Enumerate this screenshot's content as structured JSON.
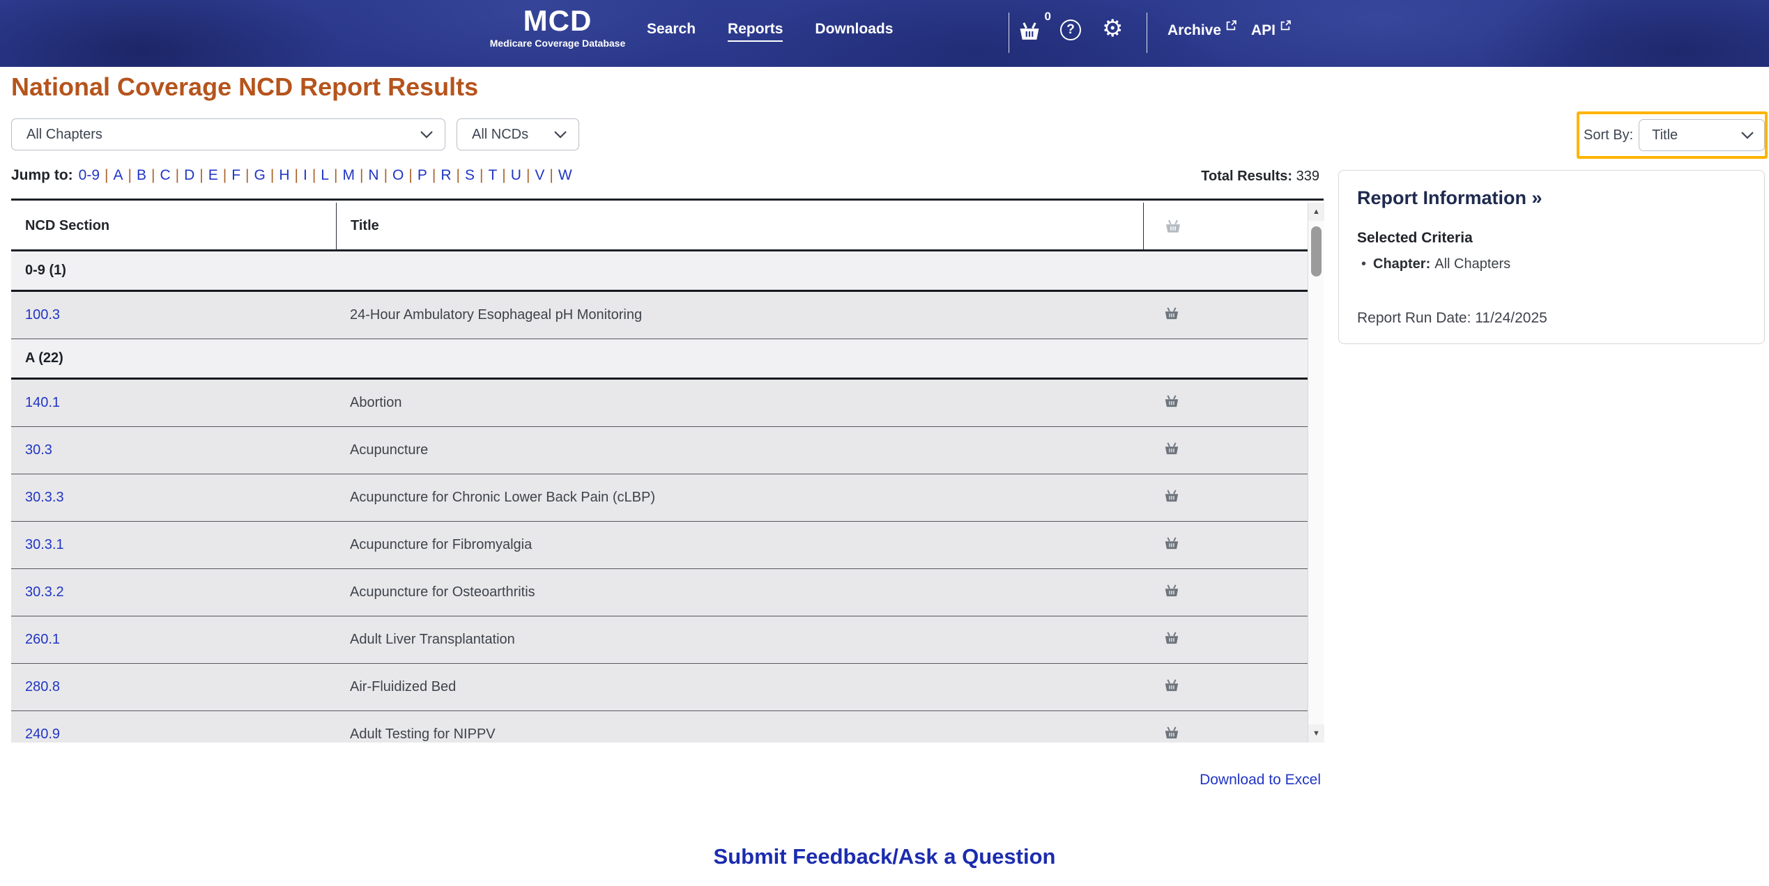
{
  "header": {
    "logo": {
      "title": "MCD",
      "subtitle": "Medicare Coverage Database"
    },
    "nav": [
      {
        "label": "Search",
        "active": false
      },
      {
        "label": "Reports",
        "active": true
      },
      {
        "label": "Downloads",
        "active": false
      }
    ],
    "basket_count": "0",
    "external_links": [
      {
        "label": "Archive"
      },
      {
        "label": "API"
      }
    ]
  },
  "page": {
    "title": "National Coverage NCD Report Results",
    "filters": {
      "chapter_value": "All Chapters",
      "ncd_value": "All NCDs",
      "sort_by_label": "Sort By:",
      "sort_by_value": "Title"
    },
    "jump": {
      "label": "Jump to:",
      "links": [
        "0-9",
        "A",
        "B",
        "C",
        "D",
        "E",
        "F",
        "G",
        "H",
        "I",
        "L",
        "M",
        "N",
        "O",
        "P",
        "R",
        "S",
        "T",
        "U",
        "V",
        "W"
      ]
    },
    "total_results_label": "Total Results:",
    "total_results_value": "339"
  },
  "table": {
    "columns": {
      "section": "NCD Section",
      "title": "Title"
    },
    "rows": [
      {
        "type": "group",
        "label": "0-9 (1)"
      },
      {
        "type": "data",
        "section": "100.3",
        "title": "24-Hour Ambulatory Esophageal pH Monitoring"
      },
      {
        "type": "group",
        "label": "A (22)"
      },
      {
        "type": "data",
        "section": "140.1",
        "title": "Abortion"
      },
      {
        "type": "data",
        "section": "30.3",
        "title": "Acupuncture"
      },
      {
        "type": "data",
        "section": "30.3.3",
        "title": "Acupuncture for Chronic Lower Back Pain (cLBP)"
      },
      {
        "type": "data",
        "section": "30.3.1",
        "title": "Acupuncture for Fibromyalgia"
      },
      {
        "type": "data",
        "section": "30.3.2",
        "title": "Acupuncture for Osteoarthritis"
      },
      {
        "type": "data",
        "section": "260.1",
        "title": "Adult Liver Transplantation"
      },
      {
        "type": "data",
        "section": "280.8",
        "title": "Air-Fluidized Bed"
      },
      {
        "type": "data",
        "section": "240.9",
        "title": "Adult Testing for NIPPV"
      }
    ]
  },
  "report_info": {
    "heading": "Report Information »",
    "criteria_heading": "Selected Criteria",
    "criteria": [
      {
        "label": "Chapter:",
        "value": "All Chapters"
      }
    ],
    "run_date_label": "Report Run Date:",
    "run_date_value": "11/24/2025"
  },
  "links": {
    "download_excel": "Download to Excel",
    "feedback": "Submit Feedback/Ask a Question"
  },
  "colors": {
    "header_blue": "#2d3b8e",
    "title_orange": "#b5541c",
    "link_blue": "#2135c4",
    "highlight_yellow": "#ffb400",
    "row_gray": "#e8e8ea",
    "group_gray": "#f1f1f3"
  }
}
